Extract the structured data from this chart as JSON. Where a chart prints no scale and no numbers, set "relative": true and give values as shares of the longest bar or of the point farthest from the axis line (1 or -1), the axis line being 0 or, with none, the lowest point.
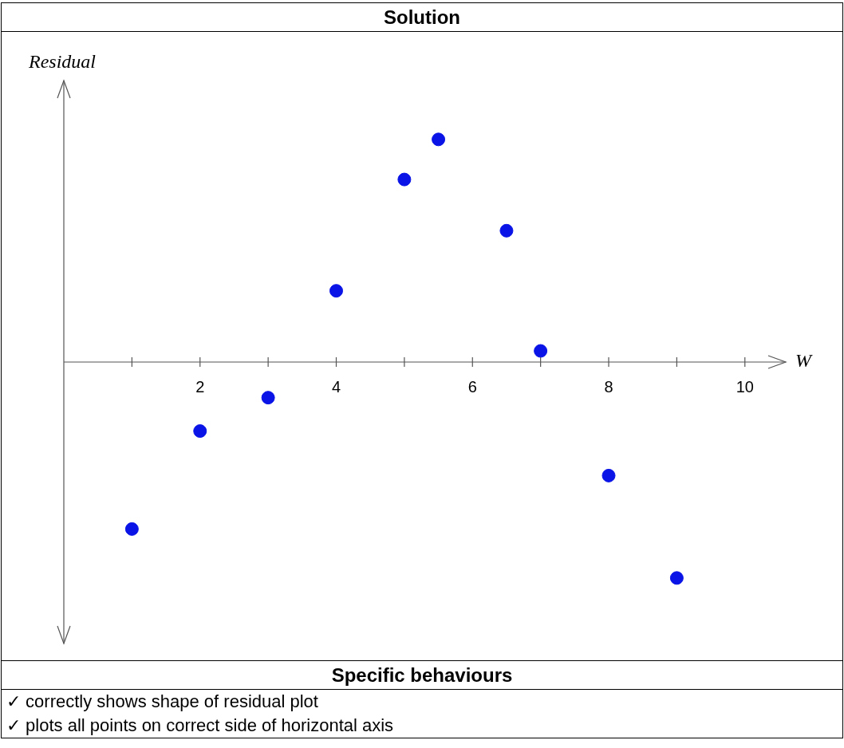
{
  "chart_data": {
    "type": "scatter",
    "title": "Solution",
    "xlabel": "W",
    "ylabel": "Residual",
    "relative": true,
    "x": [
      1,
      2,
      3,
      4,
      5,
      5.5,
      6.5,
      7,
      8,
      9
    ],
    "values": [
      -0.75,
      -0.31,
      -0.16,
      0.32,
      0.82,
      1,
      0.59,
      0.05,
      -0.51,
      -0.97
    ],
    "color": "#0a14e6",
    "marker": "circle",
    "xlim": [
      0,
      10.6
    ],
    "xticks": [
      {
        "value": 1,
        "label": null
      },
      2,
      {
        "value": 3,
        "label": null
      },
      4,
      {
        "value": 5,
        "label": null
      },
      6,
      {
        "value": 7,
        "label": null
      },
      8,
      {
        "value": 9,
        "label": null
      },
      10
    ],
    "annotations": [
      "Specific behaviours",
      "✓ correctly shows shape of residual plot",
      "✓ plots all points on correct side of horizontal axis"
    ]
  }
}
